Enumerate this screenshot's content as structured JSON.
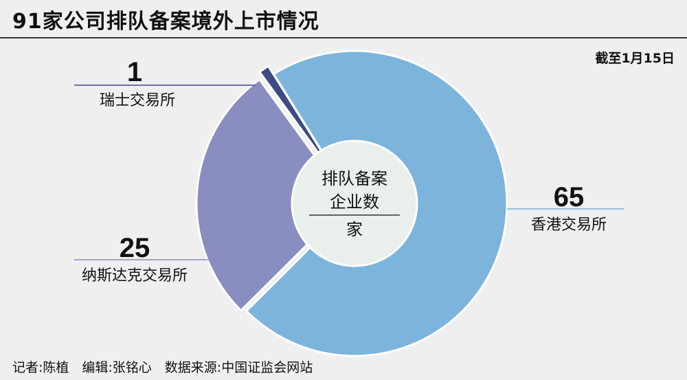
{
  "title": "91家公司排队备案境外上市情况",
  "note": "截至1月15日",
  "center": {
    "line1": "排队备案",
    "line2": "企业数",
    "unit": "家"
  },
  "footer": "记者:陈植　编辑:张铭心　数据来源:中国证监会网站",
  "chart_data": {
    "type": "pie",
    "donut": true,
    "total": 91,
    "categories": [
      "香港交易所",
      "纳斯达克交易所",
      "瑞士交易所"
    ],
    "values": [
      65,
      25,
      1
    ],
    "value_labels": [
      "65",
      "25",
      "1"
    ],
    "colors": [
      "#7cb4dc",
      "#8a8dc0",
      "#3c4a86"
    ],
    "center_color": "#e9f0ec"
  }
}
